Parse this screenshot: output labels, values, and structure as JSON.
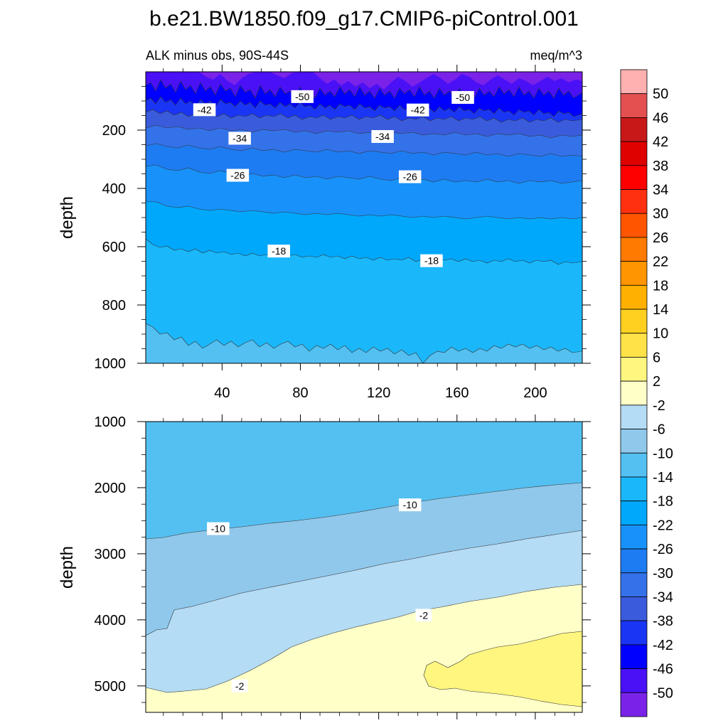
{
  "chart_data": {
    "type": "contour",
    "title": "b.e21.BW1850.f09_g17.CMIP6-piControl.001",
    "subtitle_left": "ALK minus obs, 90S-44S",
    "subtitle_right": "meq/m^3",
    "panels": [
      {
        "name": "upper",
        "ylabel": "depth",
        "xlim": [
          1,
          224
        ],
        "ylim": [
          0,
          1000
        ],
        "x_ticks": [
          "40",
          "80",
          "120",
          "160",
          "200"
        ],
        "x_tick_values": [
          40,
          80,
          120,
          160,
          200
        ],
        "y_ticks": [
          "200",
          "400",
          "600",
          "800",
          "1000"
        ],
        "y_tick_values": [
          200,
          400,
          600,
          800,
          1000
        ],
        "contour_levels": [
          -50,
          -46,
          -42,
          -38,
          -34,
          -30,
          -26,
          -22,
          -18,
          -14
        ],
        "contour_labels": [
          {
            "text": "-50",
            "x": 81,
            "y": 85
          },
          {
            "text": "-50",
            "x": 163,
            "y": 88
          },
          {
            "text": "-42",
            "x": 31,
            "y": 130
          },
          {
            "text": "-42",
            "x": 140,
            "y": 131
          },
          {
            "text": "-34",
            "x": 49,
            "y": 228
          },
          {
            "text": "-34",
            "x": 122,
            "y": 222
          },
          {
            "text": "-26",
            "x": 48,
            "y": 355
          },
          {
            "text": "-26",
            "x": 136,
            "y": 360
          },
          {
            "text": "-18",
            "x": 69,
            "y": 615
          },
          {
            "text": "-18",
            "x": 147,
            "y": 648
          }
        ]
      },
      {
        "name": "lower",
        "ylabel": "depth",
        "xlim": [
          1,
          224
        ],
        "ylim": [
          1000,
          5400
        ],
        "y_ticks": [
          "1000",
          "2000",
          "3000",
          "4000",
          "5000"
        ],
        "y_tick_values": [
          1000,
          2000,
          3000,
          4000,
          5000
        ],
        "contour_levels": [
          -10,
          -2
        ],
        "contour_labels": [
          {
            "text": "-10",
            "x": 38,
            "y": 2620
          },
          {
            "text": "-10",
            "x": 136,
            "y": 2260
          },
          {
            "text": "-2",
            "x": 143,
            "y": 3930
          },
          {
            "text": "-2",
            "x": 49,
            "y": 5000
          }
        ]
      }
    ],
    "colorbar": {
      "labels": [
        "50",
        "46",
        "42",
        "38",
        "34",
        "30",
        "26",
        "22",
        "18",
        "14",
        "10",
        "6",
        "2",
        "-2",
        "-6",
        "-10",
        "-14",
        "-18",
        "-22",
        "-26",
        "-30",
        "-34",
        "-38",
        "-42",
        "-46",
        "-50"
      ],
      "colors": [
        "#ffb1b1",
        "#e45050",
        "#c81818",
        "#df0000",
        "#ff0000",
        "#ff3010",
        "#ff5500",
        "#ff7a00",
        "#ff9500",
        "#ffb000",
        "#ffd020",
        "#ffe248",
        "#fff680",
        "#ffffc8",
        "#b4dcf4",
        "#90c8ec",
        "#54c0f2",
        "#1ab8fa",
        "#00a8fc",
        "#1892fa",
        "#1e7cf2",
        "#3472ea",
        "#3a5cdc",
        "#1a36f4",
        "#0000ff",
        "#4a10f6",
        "#7a22e8"
      ]
    }
  }
}
